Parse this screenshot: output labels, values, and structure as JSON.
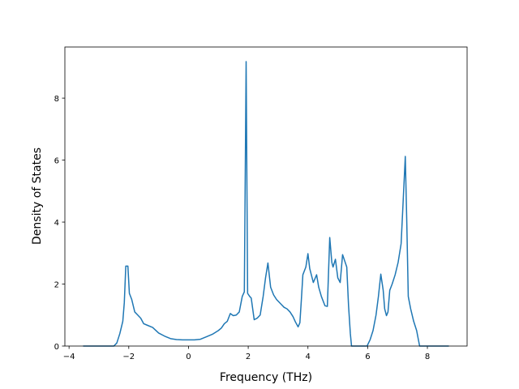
{
  "chart_data": {
    "type": "line",
    "x_label": "Frequency (THz)",
    "y_label": "Density of States",
    "x": [
      -3.53,
      -2.5,
      -2.4,
      -2.3,
      -2.2,
      -2.15,
      -2.1,
      -2.03,
      -1.98,
      -1.9,
      -1.8,
      -1.7,
      -1.6,
      -1.5,
      -1.4,
      -1.2,
      -1.0,
      -0.8,
      -0.6,
      -0.4,
      -0.2,
      0,
      0.2,
      0.4,
      0.6,
      0.8,
      1.0,
      1.1,
      1.2,
      1.3,
      1.4,
      1.5,
      1.6,
      1.7,
      1.8,
      1.87,
      1.93,
      1.98,
      2.05,
      2.1,
      2.2,
      2.3,
      2.4,
      2.5,
      2.58,
      2.66,
      2.75,
      2.85,
      2.95,
      3.1,
      3.2,
      3.3,
      3.4,
      3.5,
      3.58,
      3.67,
      3.73,
      3.78,
      3.83,
      3.93,
      4.0,
      4.06,
      4.18,
      4.29,
      4.36,
      4.45,
      4.57,
      4.65,
      4.73,
      4.8,
      4.84,
      4.92,
      5.0,
      5.08,
      5.16,
      5.3,
      5.36,
      5.42,
      5.46,
      5.98,
      6.08,
      6.18,
      6.28,
      6.36,
      6.44,
      6.52,
      6.57,
      6.63,
      6.68,
      6.74,
      6.82,
      6.92,
      7.02,
      7.12,
      7.18,
      7.26,
      7.31,
      7.36,
      7.44,
      7.54,
      7.64,
      7.7,
      7.74,
      8.72
    ],
    "series": [
      {
        "color": "#1f77b4",
        "values": [
          0,
          0,
          0.1,
          0.4,
          0.8,
          1.4,
          2.58,
          2.58,
          1.7,
          1.5,
          1.1,
          1.0,
          0.9,
          0.72,
          0.68,
          0.6,
          0.42,
          0.32,
          0.24,
          0.21,
          0.2,
          0.2,
          0.2,
          0.22,
          0.3,
          0.38,
          0.5,
          0.58,
          0.72,
          0.8,
          1.05,
          0.98,
          1.0,
          1.1,
          1.6,
          1.75,
          9.18,
          1.7,
          1.6,
          1.55,
          0.85,
          0.9,
          1.0,
          1.6,
          2.2,
          2.68,
          1.9,
          1.65,
          1.5,
          1.35,
          1.25,
          1.2,
          1.1,
          0.95,
          0.78,
          0.62,
          0.75,
          1.5,
          2.3,
          2.55,
          2.98,
          2.5,
          2.05,
          2.3,
          1.9,
          1.6,
          1.3,
          1.28,
          3.5,
          2.7,
          2.55,
          2.8,
          2.2,
          2.05,
          2.95,
          2.55,
          1.3,
          0.4,
          0,
          0,
          0.2,
          0.5,
          1.0,
          1.6,
          2.32,
          1.8,
          1.2,
          0.98,
          1.1,
          1.8,
          2.0,
          2.3,
          2.7,
          3.3,
          4.5,
          6.12,
          4.0,
          1.6,
          1.2,
          0.8,
          0.5,
          0.2,
          0,
          0
        ]
      }
    ],
    "xlim": [
      -4.14,
      9.33
    ],
    "ylim": [
      0,
      9.65
    ],
    "xticks": [
      {
        "value": -4,
        "label": "−4"
      },
      {
        "value": -2,
        "label": "−2"
      },
      0,
      2,
      4,
      6,
      8
    ],
    "yticks": [
      0,
      2,
      4,
      6,
      8
    ]
  }
}
